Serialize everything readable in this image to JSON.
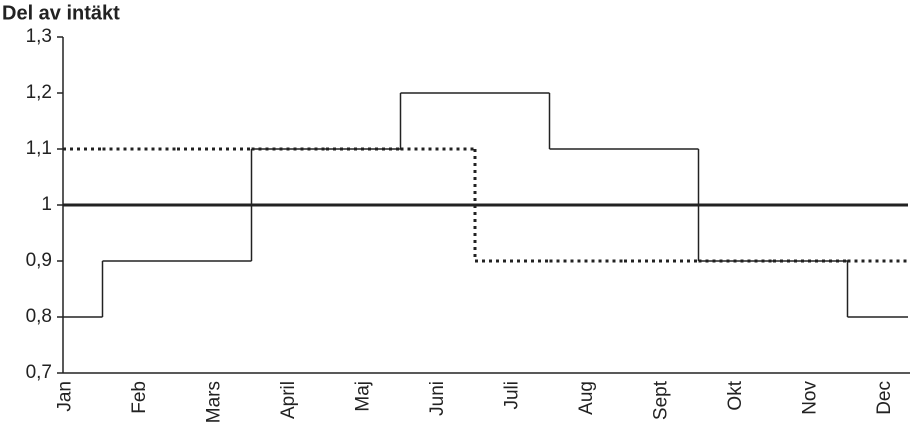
{
  "chart_data": {
    "type": "step",
    "title": "Del av intäkt",
    "categories": [
      "Jan",
      "Feb",
      "Mars",
      "April",
      "Maj",
      "Juni",
      "Juli",
      "Aug",
      "Sept",
      "Okt",
      "Nov",
      "Dec"
    ],
    "series": [
      {
        "color": "#222222",
        "line_style": "solid",
        "line_width": 1.5,
        "values": [
          0.8,
          0.9,
          0.9,
          1.1,
          1.1,
          1.2,
          1.2,
          1.1,
          1.1,
          0.9,
          0.9,
          0.8
        ]
      },
      {
        "color": "#222222",
        "line_style": "dotted",
        "line_width": 3,
        "values": [
          1.1,
          1.1,
          1.1,
          1.1,
          1.1,
          1.1,
          0.9,
          0.9,
          0.9,
          0.9,
          0.9,
          0.9
        ]
      },
      {
        "color": "#222222",
        "line_style": "solid",
        "line_width": 3,
        "values": [
          1,
          1,
          1,
          1,
          1,
          1,
          1,
          1,
          1,
          1,
          1,
          1
        ]
      }
    ],
    "ylim": [
      0.7,
      1.3
    ],
    "yticks": [
      {
        "value": 0.7,
        "label": "0,7"
      },
      {
        "value": 0.8,
        "label": "0,8"
      },
      {
        "value": 0.9,
        "label": "0,9"
      },
      1,
      {
        "value": 1.1,
        "label": "1,1"
      },
      {
        "value": 1.2,
        "label": "1,2"
      },
      {
        "value": 1.3,
        "label": "1,3"
      }
    ],
    "grid": false
  }
}
